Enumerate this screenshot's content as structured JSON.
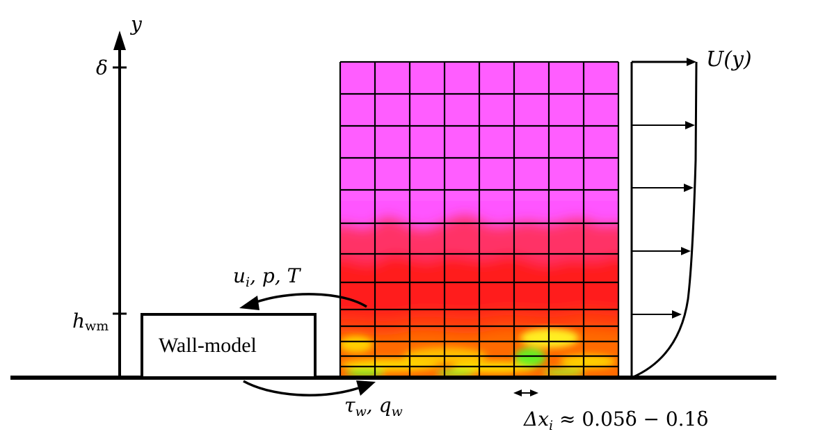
{
  "labels": {
    "y_axis": "y",
    "delta": "δ",
    "h_wm": "h",
    "h_wm_sub": "wm",
    "wall_model": "Wall-model",
    "inputs_u": "u",
    "inputs_i": "i",
    "inputs_rest": ", p, T",
    "outputs_tau": "τ",
    "outputs_w1": "w",
    "outputs_mid": ", q",
    "outputs_w2": "w",
    "velocity_profile": "U(y)",
    "spacing_dx": "Δx",
    "spacing_i": "i",
    "spacing_rest": " ≈ 0.05δ − 0.1δ"
  },
  "colors": {
    "upper_region": "#ff55ff",
    "upper_region_light": "#ff66ff",
    "buffer_region": "#ff2255",
    "log_region": "#ff1a1a",
    "near_wall": "#ff5500",
    "viscous_sublayer": "#ffcc00",
    "wall_spot": "#66ee22",
    "lines": "#000000",
    "background": "#ffffff"
  },
  "icons": {
    "input_arrow": "curved-arrow-left-icon",
    "output_arrow": "curved-arrow-right-icon",
    "spacing_arrow": "double-arrow-icon"
  }
}
